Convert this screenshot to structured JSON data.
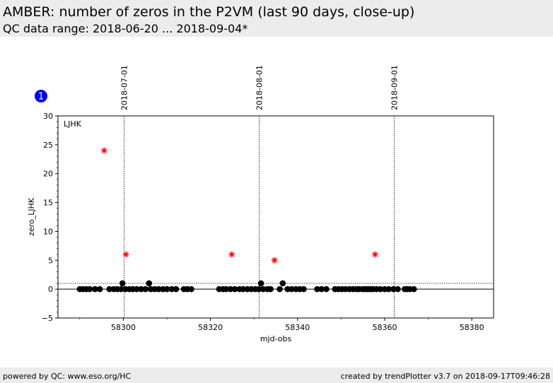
{
  "header": {
    "title": "AMBER: number of zeros in the P2VM (last 90 days, close-up)",
    "subtitle": "QC data range: 2018-06-20 ... 2018-09-04*"
  },
  "footer": {
    "left": "powered by QC: www.eso.org/HC",
    "right": "created by trendPlotter v3.7 on 2018-09-17T09:46:28"
  },
  "badge": {
    "label": "1",
    "color": "#0000ff"
  },
  "chart_data": {
    "type": "scatter",
    "panel_label": "LJHK",
    "xlabel": "mjd-obs",
    "ylabel": "zero_LJHK",
    "xlim": [
      58285,
      58385
    ],
    "ylim": [
      -5,
      30
    ],
    "x_ticks": [
      58300,
      58320,
      58340,
      58360,
      58380
    ],
    "y_ticks": [
      -5,
      0,
      5,
      10,
      15,
      20,
      25,
      30
    ],
    "reference_line": 0,
    "threshold_line": 1,
    "date_markers": [
      {
        "label": "2018-07-01",
        "x": 58300.2
      },
      {
        "label": "2018-08-01",
        "x": 58331.2
      },
      {
        "label": "2018-09-01",
        "x": 58362.2
      }
    ],
    "series": [
      {
        "marker": "circle",
        "color": "#000000",
        "points": [
          [
            58290.0,
            0
          ],
          [
            58290.7,
            0
          ],
          [
            58291.5,
            0
          ],
          [
            58292.3,
            0
          ],
          [
            58293.5,
            0
          ],
          [
            58294.6,
            0
          ],
          [
            58296.8,
            0
          ],
          [
            58297.8,
            0
          ],
          [
            58298.6,
            0
          ],
          [
            58299.5,
            0
          ],
          [
            58299.8,
            1
          ],
          [
            58300.5,
            0
          ],
          [
            58301.4,
            0
          ],
          [
            58302.2,
            0
          ],
          [
            58303.1,
            0
          ],
          [
            58304.1,
            0
          ],
          [
            58305.1,
            0
          ],
          [
            58305.9,
            1
          ],
          [
            58306.3,
            0
          ],
          [
            58307.2,
            0
          ],
          [
            58308.1,
            0
          ],
          [
            58309.1,
            0
          ],
          [
            58310.0,
            0
          ],
          [
            58311.1,
            0
          ],
          [
            58312.1,
            0
          ],
          [
            58313.9,
            0
          ],
          [
            58314.7,
            0
          ],
          [
            58315.6,
            0
          ],
          [
            58322.0,
            0
          ],
          [
            58322.9,
            0
          ],
          [
            58323.6,
            0
          ],
          [
            58324.6,
            0
          ],
          [
            58325.6,
            0
          ],
          [
            58326.7,
            0
          ],
          [
            58327.5,
            0
          ],
          [
            58328.5,
            0
          ],
          [
            58329.4,
            0
          ],
          [
            58330.3,
            0
          ],
          [
            58331.1,
            0
          ],
          [
            58331.6,
            1
          ],
          [
            58332.1,
            0
          ],
          [
            58333.1,
            0
          ],
          [
            58333.8,
            0
          ],
          [
            58335.9,
            0
          ],
          [
            58336.6,
            1
          ],
          [
            58337.7,
            0
          ],
          [
            58338.6,
            0
          ],
          [
            58339.6,
            0
          ],
          [
            58340.5,
            0
          ],
          [
            58341.4,
            0
          ],
          [
            58344.5,
            0
          ],
          [
            58345.5,
            0
          ],
          [
            58346.6,
            0
          ],
          [
            58348.6,
            0
          ],
          [
            58349.4,
            0
          ],
          [
            58350.2,
            0
          ],
          [
            58351.0,
            0
          ],
          [
            58351.9,
            0
          ],
          [
            58352.7,
            0
          ],
          [
            58353.5,
            0
          ],
          [
            58354.1,
            0
          ],
          [
            58354.9,
            0
          ],
          [
            58355.5,
            0
          ],
          [
            58356.1,
            0
          ],
          [
            58356.7,
            0
          ],
          [
            58357.3,
            0
          ],
          [
            58358.1,
            0
          ],
          [
            58359.0,
            0
          ],
          [
            58360.0,
            0
          ],
          [
            58360.9,
            0
          ],
          [
            58362.0,
            0
          ],
          [
            58363.0,
            0
          ],
          [
            58364.6,
            0
          ],
          [
            58365.2,
            0
          ],
          [
            58365.8,
            0
          ],
          [
            58366.7,
            0
          ]
        ]
      },
      {
        "marker": "star",
        "color": "#ff0000",
        "points": [
          [
            58295.6,
            24
          ],
          [
            58300.6,
            6
          ],
          [
            58324.9,
            6
          ],
          [
            58334.7,
            5
          ],
          [
            58357.8,
            6
          ]
        ]
      }
    ]
  }
}
